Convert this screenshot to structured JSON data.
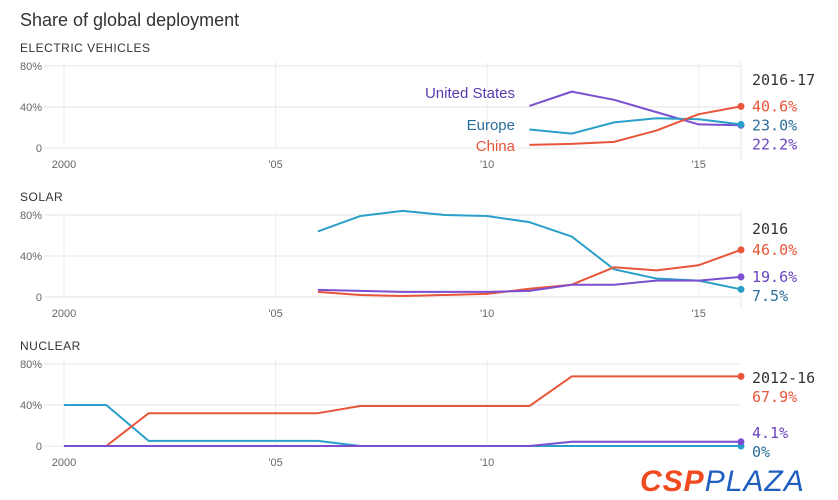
{
  "title": "Share of global deployment",
  "logo": {
    "part1": "CSP",
    "part2": "PLAZA"
  },
  "colors": {
    "United States": "#7b4fd0",
    "Europe": "#2a9fc9",
    "China": "#e8553a"
  },
  "chart_data": [
    {
      "type": "line",
      "title": "ELECTRIC VEHICLES",
      "period_label": "2016-17",
      "xlim": [
        2000,
        2016
      ],
      "ylim": [
        0,
        80
      ],
      "x_ticks": [
        {
          "v": 2000,
          "label": "2000"
        },
        {
          "v": 2005,
          "label": "'05"
        },
        {
          "v": 2010,
          "label": "'10"
        },
        {
          "v": 2015,
          "label": "'15"
        }
      ],
      "y_ticks": [
        {
          "v": 0,
          "label": "0"
        },
        {
          "v": 40,
          "label": "40%"
        },
        {
          "v": 80,
          "label": "80%"
        }
      ],
      "series_labels_inline": true,
      "series": [
        {
          "name": "United States",
          "x": [
            2011,
            2012,
            2013,
            2014,
            2015,
            2016
          ],
          "values": [
            41,
            55,
            47,
            35,
            23,
            22.2
          ],
          "end_label": "22.2%"
        },
        {
          "name": "Europe",
          "x": [
            2011,
            2012,
            2013,
            2014,
            2015,
            2016
          ],
          "values": [
            18,
            14,
            25,
            29,
            28,
            23.0
          ],
          "end_label": "23.0%"
        },
        {
          "name": "China",
          "x": [
            2011,
            2012,
            2013,
            2014,
            2015,
            2016
          ],
          "values": [
            3,
            4,
            6,
            17,
            33,
            40.6
          ],
          "end_label": "40.6%"
        }
      ]
    },
    {
      "type": "line",
      "title": "SOLAR",
      "period_label": "2016",
      "xlim": [
        2000,
        2016
      ],
      "ylim": [
        0,
        80
      ],
      "x_ticks": [
        {
          "v": 2000,
          "label": "2000"
        },
        {
          "v": 2005,
          "label": "'05"
        },
        {
          "v": 2010,
          "label": "'10"
        },
        {
          "v": 2015,
          "label": "'15"
        }
      ],
      "y_ticks": [
        {
          "v": 0,
          "label": "0"
        },
        {
          "v": 40,
          "label": "40%"
        },
        {
          "v": 80,
          "label": "80%"
        }
      ],
      "series": [
        {
          "name": "Europe",
          "x": [
            2006,
            2007,
            2008,
            2009,
            2010,
            2011,
            2012,
            2013,
            2014,
            2015,
            2016
          ],
          "values": [
            64,
            79,
            84,
            80,
            79,
            73,
            59,
            27,
            18,
            16,
            7.5
          ],
          "end_label": "7.5%"
        },
        {
          "name": "China",
          "x": [
            2006,
            2007,
            2008,
            2009,
            2010,
            2011,
            2012,
            2013,
            2014,
            2015,
            2016
          ],
          "values": [
            5,
            2,
            1,
            2,
            3,
            8,
            12,
            29,
            26,
            31,
            46.0
          ],
          "end_label": "46.0%"
        },
        {
          "name": "United States",
          "x": [
            2006,
            2007,
            2008,
            2009,
            2010,
            2011,
            2012,
            2013,
            2014,
            2015,
            2016
          ],
          "values": [
            7,
            6,
            5,
            5,
            5,
            6,
            12,
            12,
            16,
            16,
            19.6
          ],
          "end_label": "19.6%"
        }
      ]
    },
    {
      "type": "line",
      "title": "NUCLEAR",
      "period_label": "2012-16",
      "xlim": [
        2000,
        2016
      ],
      "ylim": [
        0,
        80
      ],
      "x_ticks": [
        {
          "v": 2000,
          "label": "2000"
        },
        {
          "v": 2005,
          "label": "'05"
        },
        {
          "v": 2010,
          "label": "'10"
        }
      ],
      "y_ticks": [
        {
          "v": 0,
          "label": "0"
        },
        {
          "v": 40,
          "label": "40%"
        },
        {
          "v": 80,
          "label": "80%"
        }
      ],
      "series": [
        {
          "name": "Europe",
          "x": [
            2000,
            2001,
            2002,
            2003,
            2004,
            2005,
            2006,
            2007,
            2008,
            2009,
            2010,
            2011,
            2012,
            2013,
            2014,
            2015,
            2016
          ],
          "values": [
            40,
            40,
            5,
            5,
            5,
            5,
            5,
            0,
            0,
            0,
            0,
            0,
            0,
            0,
            0,
            0,
            0
          ],
          "end_label": "0%"
        },
        {
          "name": "China",
          "x": [
            2000,
            2001,
            2002,
            2003,
            2004,
            2005,
            2006,
            2007,
            2008,
            2009,
            2010,
            2011,
            2012,
            2013,
            2014,
            2015,
            2016
          ],
          "values": [
            0,
            0,
            32,
            32,
            32,
            32,
            32,
            39,
            39,
            39,
            39,
            39,
            67.9,
            67.9,
            67.9,
            67.9,
            67.9
          ],
          "end_label": "67.9%"
        },
        {
          "name": "United States",
          "x": [
            2000,
            2001,
            2002,
            2003,
            2004,
            2005,
            2006,
            2007,
            2008,
            2009,
            2010,
            2011,
            2012,
            2013,
            2014,
            2015,
            2016
          ],
          "values": [
            0,
            0,
            0,
            0,
            0,
            0,
            0,
            0,
            0,
            0,
            0,
            0,
            4.1,
            4.1,
            4.1,
            4.1,
            4.1
          ],
          "end_label": "4.1%"
        }
      ]
    }
  ]
}
